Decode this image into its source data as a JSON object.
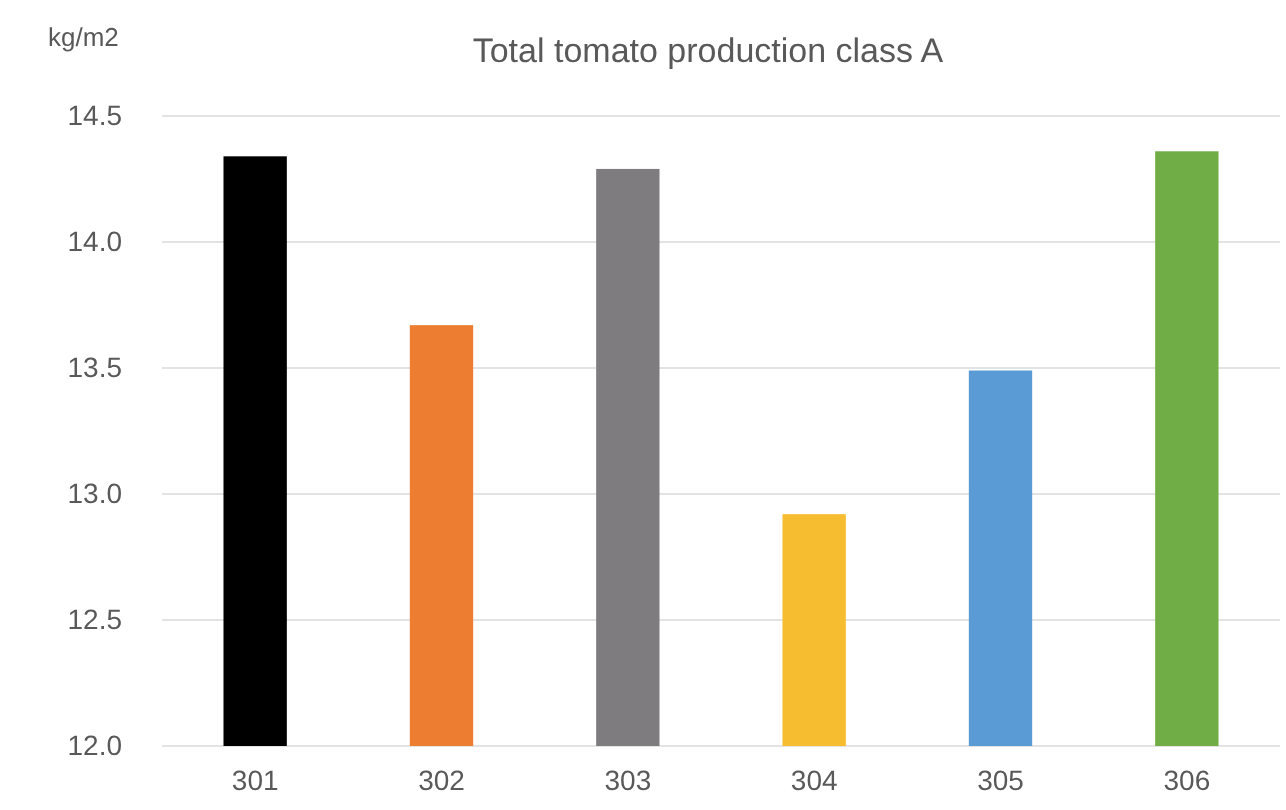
{
  "chart_data": {
    "type": "bar",
    "title": "Total tomato production class A",
    "ylabel": "kg/m2",
    "categories": [
      "301",
      "302",
      "303",
      "304",
      "305",
      "306"
    ],
    "values": [
      14.34,
      13.67,
      14.29,
      12.92,
      13.49,
      14.36
    ],
    "colors": [
      "#000000",
      "#ed7d31",
      "#7f7c80",
      "#f6bd30",
      "#5b9bd5",
      "#70ad47"
    ],
    "ylim": [
      12,
      14.5
    ],
    "yticks": [
      {
        "value": 12,
        "label": "12.0"
      },
      12.5,
      {
        "value": 13,
        "label": "13.0"
      },
      13.5,
      {
        "value": 14,
        "label": "14.0"
      },
      14.5
    ],
    "grid": "y"
  }
}
